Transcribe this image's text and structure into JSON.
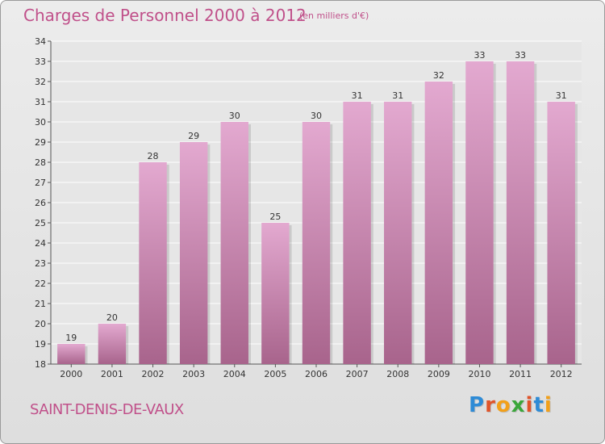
{
  "header": {
    "title": "Charges de Personnel 2000 à 2012",
    "subtitle": "(en milliers d'€)"
  },
  "footer": {
    "commune": "SAINT-DENIS-DE-VAUX",
    "logo": [
      "P",
      "r",
      "o",
      "x",
      "i",
      "t",
      "i"
    ],
    "logo_colors": [
      "#2e8bd6",
      "#e0542a",
      "#f2a01a",
      "#3aa63a",
      "#e0542a",
      "#2e8bd6",
      "#f2a01a"
    ]
  },
  "colors": {
    "bar_top": "#e3a9d0",
    "bar_bottom": "#a8648c",
    "accent": "#c0508a"
  },
  "chart_data": {
    "type": "bar",
    "title": "Charges de Personnel 2000 à 2012",
    "subtitle": "(en milliers d'€)",
    "categories": [
      "2000",
      "2001",
      "2002",
      "2003",
      "2004",
      "2005",
      "2006",
      "2007",
      "2008",
      "2009",
      "2010",
      "2011",
      "2012"
    ],
    "values": [
      19,
      20,
      28,
      29,
      30,
      25,
      30,
      31,
      31,
      32,
      33,
      33,
      31
    ],
    "ylim": [
      18,
      34
    ],
    "yticks": [
      18,
      19,
      20,
      21,
      22,
      23,
      24,
      25,
      26,
      27,
      28,
      29,
      30,
      31,
      32,
      33,
      34
    ],
    "grid": true,
    "legend": "none"
  }
}
